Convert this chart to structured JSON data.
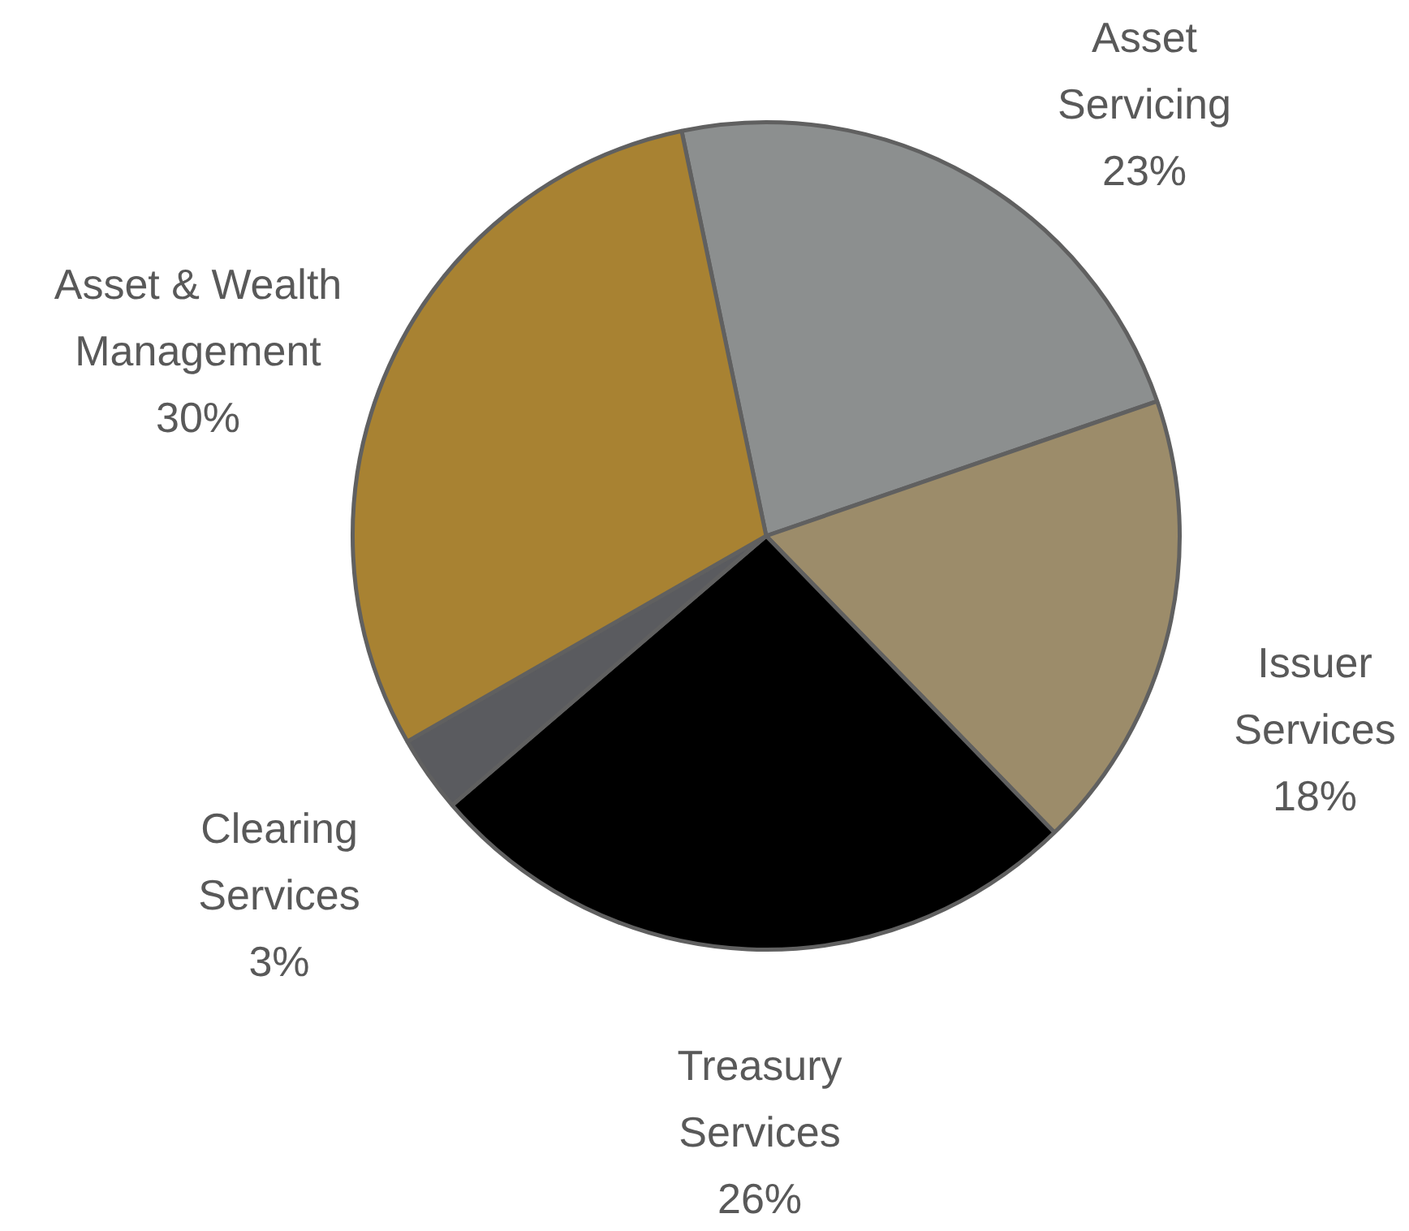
{
  "chart_data": {
    "type": "pie",
    "categories": [
      "Asset Servicing",
      "Issuer Services",
      "Treasury Services",
      "Clearing Services",
      "Asset & Wealth Management"
    ],
    "values": [
      23,
      18,
      26,
      3,
      30
    ],
    "value_labels": [
      "23%",
      "18%",
      "26%",
      "3%",
      "30%"
    ],
    "colors": [
      "#8c8f8f",
      "#9c8c6a",
      "#000000",
      "#5a5b5f",
      "#a88232"
    ],
    "legend": false
  }
}
